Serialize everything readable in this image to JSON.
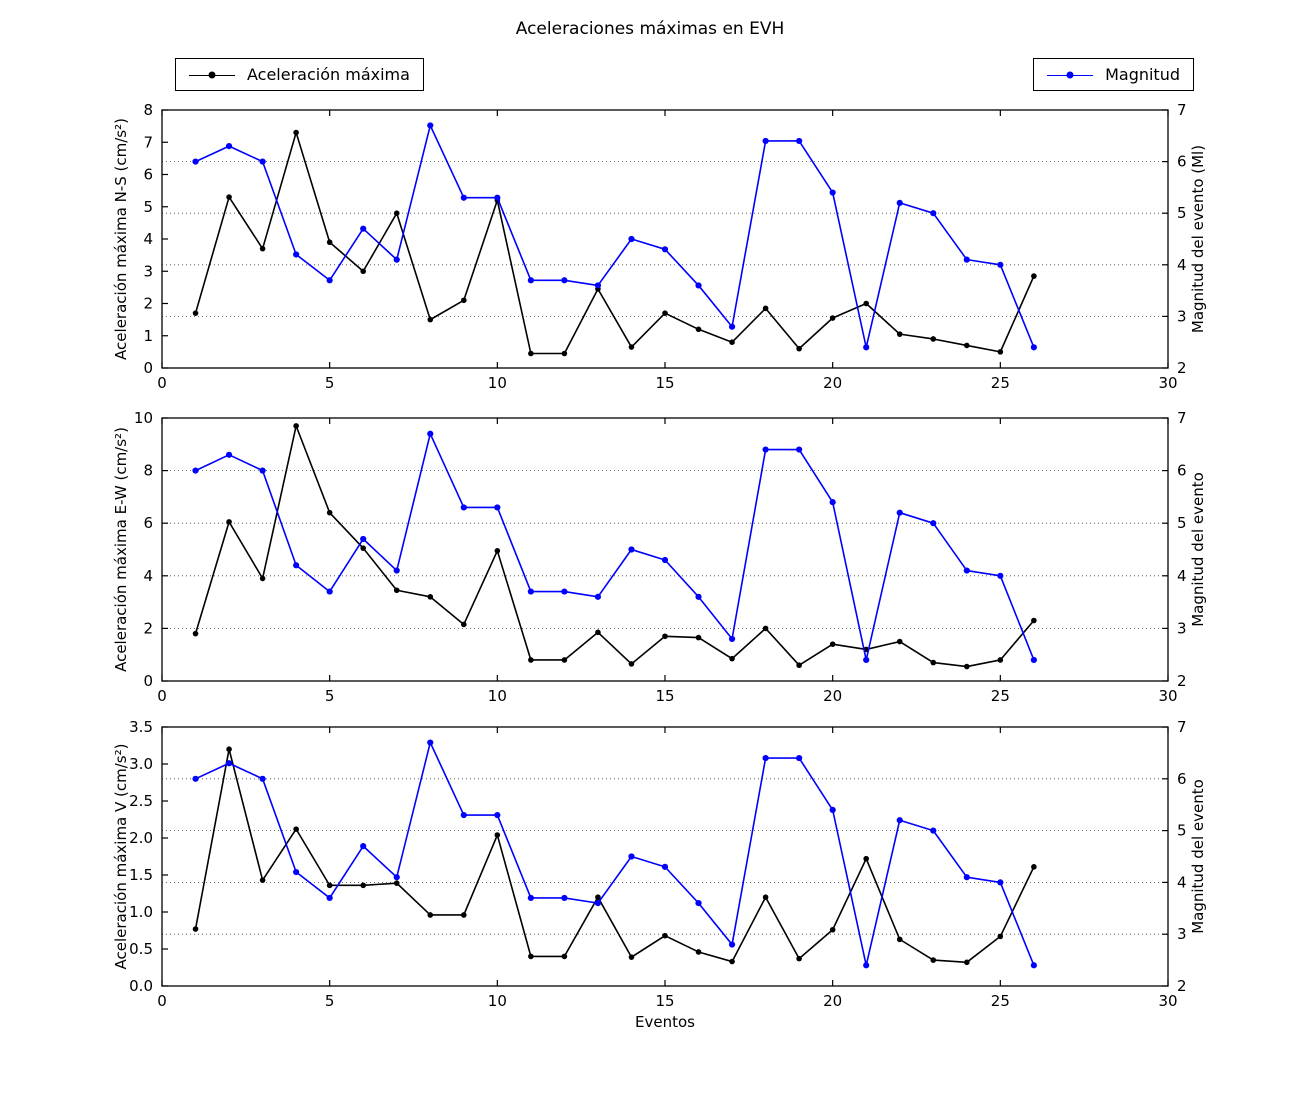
{
  "title": "Aceleraciones máximas en EVH",
  "legend": {
    "acceleration_label": "Aceleración máxima",
    "acceleration_color": "#000000",
    "magnitude_label": "Magnitud",
    "magnitude_color": "#0000ff"
  },
  "x_axis": {
    "label": "Eventos",
    "min": 0,
    "max": 30,
    "ticks": [
      "0",
      "5",
      "10",
      "15",
      "20",
      "25",
      "30"
    ]
  },
  "chart_data": [
    {
      "type": "line",
      "ylabel_left": "Aceleración máxima N-S (cm/s²)",
      "ylabel_right": "Magnitud del evento (Ml)",
      "ylim_left": [
        0,
        8
      ],
      "yticks_left": [
        "0",
        "1",
        "2",
        "3",
        "4",
        "5",
        "6",
        "7",
        "8"
      ],
      "ylim_right": [
        2,
        7
      ],
      "yticks_right": [
        "2",
        "3",
        "4",
        "5",
        "6",
        "7"
      ],
      "grid": "horizontal dotted at right-axis ticks",
      "grid_right_values": [
        3,
        4,
        5,
        6
      ],
      "x": [
        1,
        2,
        3,
        4,
        5,
        6,
        7,
        8,
        9,
        10,
        11,
        12,
        13,
        14,
        15,
        16,
        17,
        18,
        19,
        20,
        21,
        22,
        23,
        24,
        25,
        26
      ],
      "series": [
        {
          "name": "Aceleración máxima",
          "axis": "left",
          "color": "#000000",
          "values": [
            1.7,
            5.3,
            3.7,
            7.3,
            3.9,
            3.0,
            4.8,
            1.5,
            2.1,
            5.2,
            0.45,
            0.45,
            2.45,
            0.65,
            1.7,
            1.2,
            0.8,
            1.85,
            0.6,
            1.55,
            2.0,
            1.05,
            0.9,
            0.7,
            0.5,
            2.85
          ]
        },
        {
          "name": "Magnitud",
          "axis": "right",
          "color": "#0000ff",
          "values": [
            6.0,
            6.3,
            6.0,
            4.2,
            3.7,
            4.7,
            4.1,
            6.7,
            5.3,
            5.3,
            3.7,
            3.7,
            3.6,
            4.5,
            4.3,
            3.6,
            2.8,
            6.4,
            6.4,
            5.4,
            2.4,
            5.2,
            5.0,
            4.1,
            4.0,
            2.4
          ]
        }
      ]
    },
    {
      "type": "line",
      "ylabel_left": "Aceleración máxima E-W (cm/s²)",
      "ylabel_right": "Magnitud del evento",
      "ylim_left": [
        0,
        10
      ],
      "yticks_left": [
        "0",
        "2",
        "4",
        "6",
        "8",
        "10"
      ],
      "ylim_right": [
        2,
        7
      ],
      "yticks_right": [
        "2",
        "3",
        "4",
        "5",
        "6",
        "7"
      ],
      "grid": "horizontal dotted at right-axis ticks",
      "grid_right_values": [
        3,
        4,
        5,
        6
      ],
      "x": [
        1,
        2,
        3,
        4,
        5,
        6,
        7,
        8,
        9,
        10,
        11,
        12,
        13,
        14,
        15,
        16,
        17,
        18,
        19,
        20,
        21,
        22,
        23,
        24,
        25,
        26
      ],
      "series": [
        {
          "name": "Aceleración máxima",
          "axis": "left",
          "color": "#000000",
          "values": [
            1.8,
            6.05,
            3.9,
            9.7,
            6.4,
            5.05,
            3.45,
            3.2,
            2.15,
            4.95,
            0.8,
            0.8,
            1.85,
            0.65,
            1.7,
            1.65,
            0.85,
            2.0,
            0.6,
            1.4,
            1.2,
            1.5,
            0.7,
            0.55,
            0.8,
            2.3
          ]
        },
        {
          "name": "Magnitud",
          "axis": "right",
          "color": "#0000ff",
          "values": [
            6.0,
            6.3,
            6.0,
            4.2,
            3.7,
            4.7,
            4.1,
            6.7,
            5.3,
            5.3,
            3.7,
            3.7,
            3.6,
            4.5,
            4.3,
            3.6,
            2.8,
            6.4,
            6.4,
            5.4,
            2.4,
            5.2,
            5.0,
            4.1,
            4.0,
            2.4
          ]
        }
      ]
    },
    {
      "type": "line",
      "ylabel_left": "Aceleración máxima V (cm/s²)",
      "ylabel_right": "Magnitud del evento",
      "ylim_left": [
        0,
        3.5
      ],
      "yticks_left": [
        "0.0",
        "0.5",
        "1.0",
        "1.5",
        "2.0",
        "2.5",
        "3.0",
        "3.5"
      ],
      "ylim_right": [
        2,
        7
      ],
      "yticks_right": [
        "2",
        "3",
        "4",
        "5",
        "6",
        "7"
      ],
      "grid": "horizontal dotted at right-axis ticks",
      "grid_right_values": [
        3,
        4,
        5,
        6
      ],
      "x": [
        1,
        2,
        3,
        4,
        5,
        6,
        7,
        8,
        9,
        10,
        11,
        12,
        13,
        14,
        15,
        16,
        17,
        18,
        19,
        20,
        21,
        22,
        23,
        24,
        25,
        26
      ],
      "series": [
        {
          "name": "Aceleración máxima",
          "axis": "left",
          "color": "#000000",
          "values": [
            0.77,
            3.2,
            1.43,
            2.12,
            1.36,
            1.36,
            1.39,
            0.96,
            0.96,
            2.04,
            0.4,
            0.4,
            1.2,
            0.39,
            0.68,
            0.46,
            0.33,
            1.2,
            0.37,
            0.76,
            1.72,
            0.63,
            0.35,
            0.32,
            0.67,
            1.61
          ]
        },
        {
          "name": "Magnitud",
          "axis": "right",
          "color": "#0000ff",
          "values": [
            6.0,
            6.3,
            6.0,
            4.2,
            3.7,
            4.7,
            4.1,
            6.7,
            5.3,
            5.3,
            3.7,
            3.7,
            3.6,
            4.5,
            4.3,
            3.6,
            2.8,
            6.4,
            6.4,
            5.4,
            2.4,
            5.2,
            5.0,
            4.1,
            4.0,
            2.4
          ]
        }
      ]
    }
  ]
}
